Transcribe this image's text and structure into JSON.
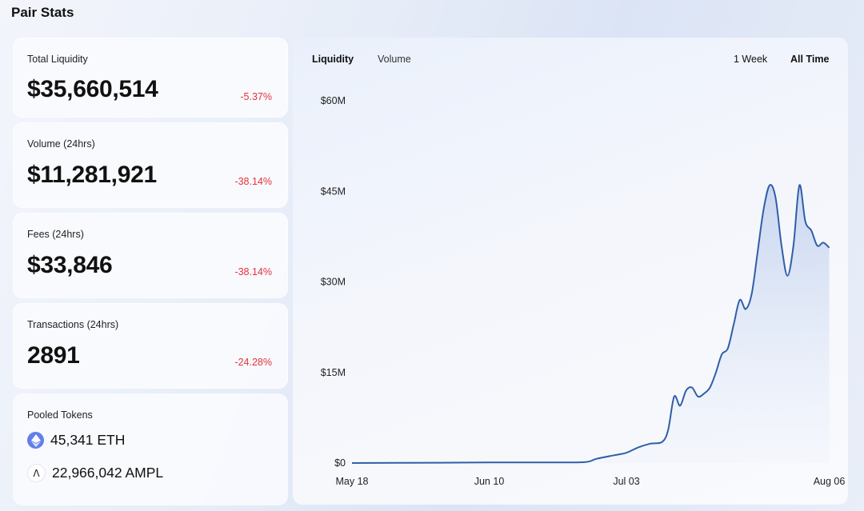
{
  "page": {
    "title": "Pair Stats"
  },
  "stats": [
    {
      "label": "Total Liquidity",
      "value": "$35,660,514",
      "change": "-5.37%"
    },
    {
      "label": "Volume (24hrs)",
      "value": "$11,281,921",
      "change": "-38.14%"
    },
    {
      "label": "Fees (24hrs)",
      "value": "$33,846",
      "change": "-38.14%"
    },
    {
      "label": "Transactions (24hrs)",
      "value": "2891",
      "change": "-24.28%"
    }
  ],
  "pooled": {
    "label": "Pooled Tokens",
    "tokens": [
      {
        "icon": "ethereum-icon",
        "text": "45,341 ETH"
      },
      {
        "icon": "ampleforth-icon",
        "text": "22,966,042 AMPL",
        "glyph": "Λ"
      }
    ]
  },
  "chart_tabs": {
    "liquidity": "Liquidity",
    "volume": "Volume",
    "active": "Liquidity"
  },
  "time_ranges": {
    "week": "1 Week",
    "all": "All Time",
    "active": "All Time"
  },
  "colors": {
    "negative": "#e5323b",
    "line": "#2f5fa8",
    "eth": "#627eea"
  },
  "chart_data": {
    "type": "area",
    "title": "",
    "xlabel": "",
    "ylabel": "",
    "x_ticks": [
      "May 18",
      "Jun 10",
      "Jul 03",
      "Aug 06"
    ],
    "y_ticks": [
      "$60M",
      "$45M",
      "$30M",
      "$15M",
      "$0"
    ],
    "y_tick_values": [
      60,
      45,
      30,
      15,
      0
    ],
    "x_range": [
      "May 18",
      "Aug 07"
    ],
    "ylim": [
      0,
      60
    ],
    "unit": "millions USD",
    "grid": false,
    "series": [
      {
        "values": [
          [
            "2020-05-18",
            0
          ],
          [
            "2020-06-02",
            0.05
          ],
          [
            "2020-06-10",
            0.1
          ],
          [
            "2020-06-20",
            0.1
          ],
          [
            "2020-06-26",
            0.15
          ],
          [
            "2020-06-28",
            0.7
          ],
          [
            "2020-07-01",
            1.3
          ],
          [
            "2020-07-03",
            1.7
          ],
          [
            "2020-07-05",
            2.6
          ],
          [
            "2020-07-07",
            3.2
          ],
          [
            "2020-07-09",
            3.5
          ],
          [
            "2020-07-10",
            5.5
          ],
          [
            "2020-07-11",
            11
          ],
          [
            "2020-07-12",
            9.5
          ],
          [
            "2020-07-13",
            12
          ],
          [
            "2020-07-14",
            12.5
          ],
          [
            "2020-07-15",
            11
          ],
          [
            "2020-07-16",
            11.5
          ],
          [
            "2020-07-17",
            12.5
          ],
          [
            "2020-07-18",
            15
          ],
          [
            "2020-07-19",
            18
          ],
          [
            "2020-07-20",
            19
          ],
          [
            "2020-07-21",
            23
          ],
          [
            "2020-07-22",
            27
          ],
          [
            "2020-07-23",
            25.5
          ],
          [
            "2020-07-24",
            28
          ],
          [
            "2020-07-25",
            35
          ],
          [
            "2020-07-26",
            42
          ],
          [
            "2020-07-27",
            46
          ],
          [
            "2020-07-28",
            44
          ],
          [
            "2020-07-29",
            36
          ],
          [
            "2020-07-30",
            31
          ],
          [
            "2020-07-31",
            36
          ],
          [
            "2020-08-01",
            46
          ],
          [
            "2020-08-02",
            40
          ],
          [
            "2020-08-03",
            38.5
          ],
          [
            "2020-08-04",
            36
          ],
          [
            "2020-08-05",
            36.5
          ],
          [
            "2020-08-06",
            35.66
          ]
        ]
      }
    ]
  }
}
